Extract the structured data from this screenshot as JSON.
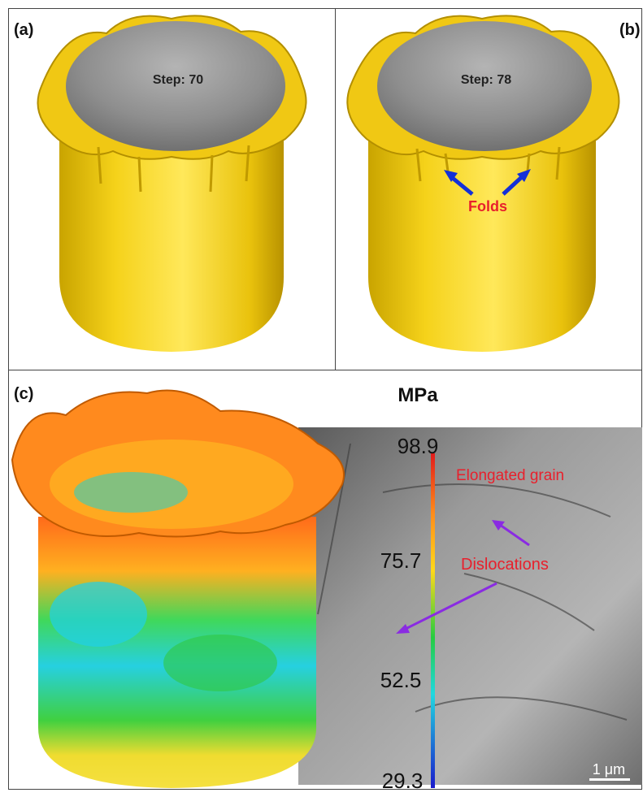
{
  "panels": {
    "a": {
      "label": "(a)",
      "step_text": "Step: 70"
    },
    "b": {
      "label": "(b)",
      "step_text": "Step: 78",
      "annotation": "Folds"
    },
    "c": {
      "label": "(c)",
      "unit": "MPa",
      "colorbar_ticks": [
        "98.9",
        "75.7",
        "52.5",
        "29.3"
      ],
      "annotations": {
        "grain": "Elongated grain",
        "dislocations": "Dislocations"
      },
      "scale_bar": "1 μm"
    }
  },
  "colors": {
    "cup_yellow": "#f2cc12",
    "punch_gray": "#8c8c8c",
    "arrow_blue": "#1430d8",
    "label_red": "#e8202c",
    "arrow_purple": "#8a2be2"
  }
}
